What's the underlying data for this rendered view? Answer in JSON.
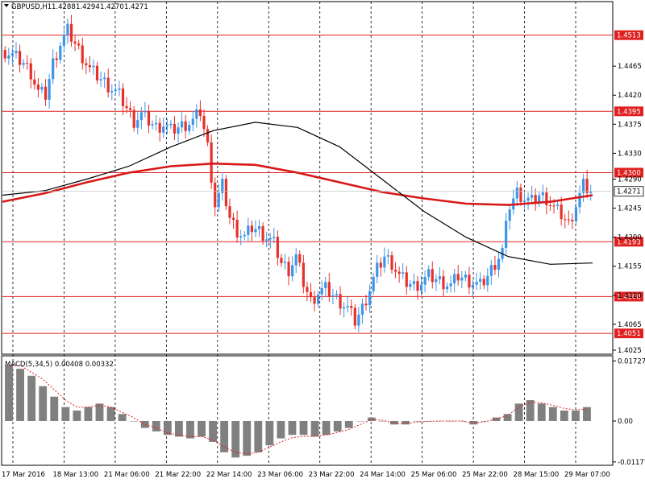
{
  "colors": {
    "background": "#ffffff",
    "grid": "#000000",
    "bull": "#3d95e8",
    "bear": "#e8302a",
    "level_line": "#e02020",
    "ma_slow": "#d81818",
    "ma_fast": "#000000",
    "macd_hist": "#808080",
    "macd_signal": "#e02020",
    "price_box": "#ffffff"
  },
  "chart_data": {
    "type": "candlestick",
    "symbol_line": {
      "symbol": "GBPUSD,H1",
      "open": "1.4288",
      "high": "1.4294",
      "low": "1.4270",
      "close": "1.4271"
    },
    "price_range": [
      1.402,
      1.455
    ],
    "y_ticks": [
      "1.4465",
      "1.4420",
      "1.4375",
      "1.4330",
      "1.4290",
      "1.4245",
      "1.4200",
      "1.4155",
      "1.4110",
      "1.4065",
      "1.4025"
    ],
    "x_ticks": [
      "17 Mar 2016",
      "18 Mar 13:00",
      "21 Mar 06:00",
      "21 Mar 22:00",
      "22 Mar 14:00",
      "23 Mar 06:00",
      "23 Mar 22:00",
      "24 Mar 14:00",
      "25 Mar 06:00",
      "25 Mar 22:00",
      "28 Mar 15:00",
      "29 Mar 07:00"
    ],
    "current_price": "1.4271",
    "levels": [
      "1.4513",
      "1.4395",
      "1.4300",
      "1.4193",
      "1.4108",
      "1.4051"
    ],
    "close_path": [
      1.449,
      1.4485,
      1.4478,
      1.447,
      1.4455,
      1.4425,
      1.442,
      1.447,
      1.45,
      1.452,
      1.45,
      1.448,
      1.446,
      1.445,
      1.444,
      1.443,
      1.442,
      1.44,
      1.438,
      1.439,
      1.438,
      1.437,
      1.4375,
      1.4365,
      1.437,
      1.4375,
      1.438,
      1.4395,
      1.434,
      1.425,
      1.428,
      1.423,
      1.421,
      1.42,
      1.4215,
      1.421,
      1.42,
      1.419,
      1.416,
      1.415,
      1.417,
      1.413,
      1.41,
      1.4115,
      1.412,
      1.411,
      1.41,
      1.409,
      1.407,
      1.409,
      1.412,
      1.415,
      1.417,
      1.416,
      1.414,
      1.413,
      1.4125,
      1.413,
      1.414,
      1.4135,
      1.413,
      1.4125,
      1.414,
      1.4135,
      1.413,
      1.4125,
      1.414,
      1.416,
      1.418,
      1.425,
      1.427,
      1.426,
      1.4255,
      1.4265,
      1.426,
      1.4245,
      1.4235,
      1.422,
      1.425,
      1.428,
      1.4271
    ],
    "ma_slow": [
      1.4255,
      1.4268,
      1.4285,
      1.43,
      1.431,
      1.4314,
      1.4312,
      1.43,
      1.4285,
      1.427,
      1.426,
      1.4252,
      1.425,
      1.4255,
      1.4265
    ],
    "ma_fast": [
      1.4265,
      1.4272,
      1.429,
      1.431,
      1.434,
      1.4365,
      1.4378,
      1.437,
      1.434,
      1.429,
      1.424,
      1.42,
      1.417,
      1.4158,
      1.416
    ],
    "macd": {
      "label": "MACD(5,34,5) 0.00408 0.00332",
      "y_ticks": [
        "0.01727",
        "0.00",
        "-0.01177"
      ],
      "range": [
        -0.0125,
        0.0185
      ],
      "hist": [
        0.016,
        0.015,
        0.013,
        0.01,
        0.007,
        0.004,
        0.003,
        0.004,
        0.005,
        0.004,
        0.002,
        0.0,
        -0.002,
        -0.003,
        -0.004,
        -0.0045,
        -0.005,
        -0.0045,
        -0.006,
        -0.009,
        -0.0105,
        -0.01,
        -0.009,
        -0.007,
        -0.005,
        -0.004,
        -0.004,
        -0.0045,
        -0.004,
        -0.003,
        -0.002,
        0.0,
        0.001,
        0.0,
        -0.001,
        -0.001,
        0.0,
        0.0,
        0.0,
        0.0,
        0.0,
        -0.001,
        0.0,
        0.001,
        0.002,
        0.005,
        0.006,
        0.005,
        0.004,
        0.003,
        0.003,
        0.004
      ],
      "signal": [
        0.016,
        0.016,
        0.014,
        0.012,
        0.009,
        0.006,
        0.004,
        0.004,
        0.0045,
        0.004,
        0.0025,
        0.001,
        -0.001,
        -0.002,
        -0.0035,
        -0.004,
        -0.0045,
        -0.0045,
        -0.0055,
        -0.0075,
        -0.009,
        -0.0095,
        -0.009,
        -0.0075,
        -0.006,
        -0.0048,
        -0.0044,
        -0.0044,
        -0.004,
        -0.0033,
        -0.0024,
        -0.001,
        0.0004,
        0.0002,
        -0.0006,
        -0.0008,
        -0.0003,
        -0.0001,
        0.0,
        0.0,
        0.0,
        -0.0006,
        -0.0002,
        0.0006,
        0.0016,
        0.004,
        0.0054,
        0.0052,
        0.0045,
        0.0036,
        0.0032,
        0.0034
      ]
    }
  }
}
